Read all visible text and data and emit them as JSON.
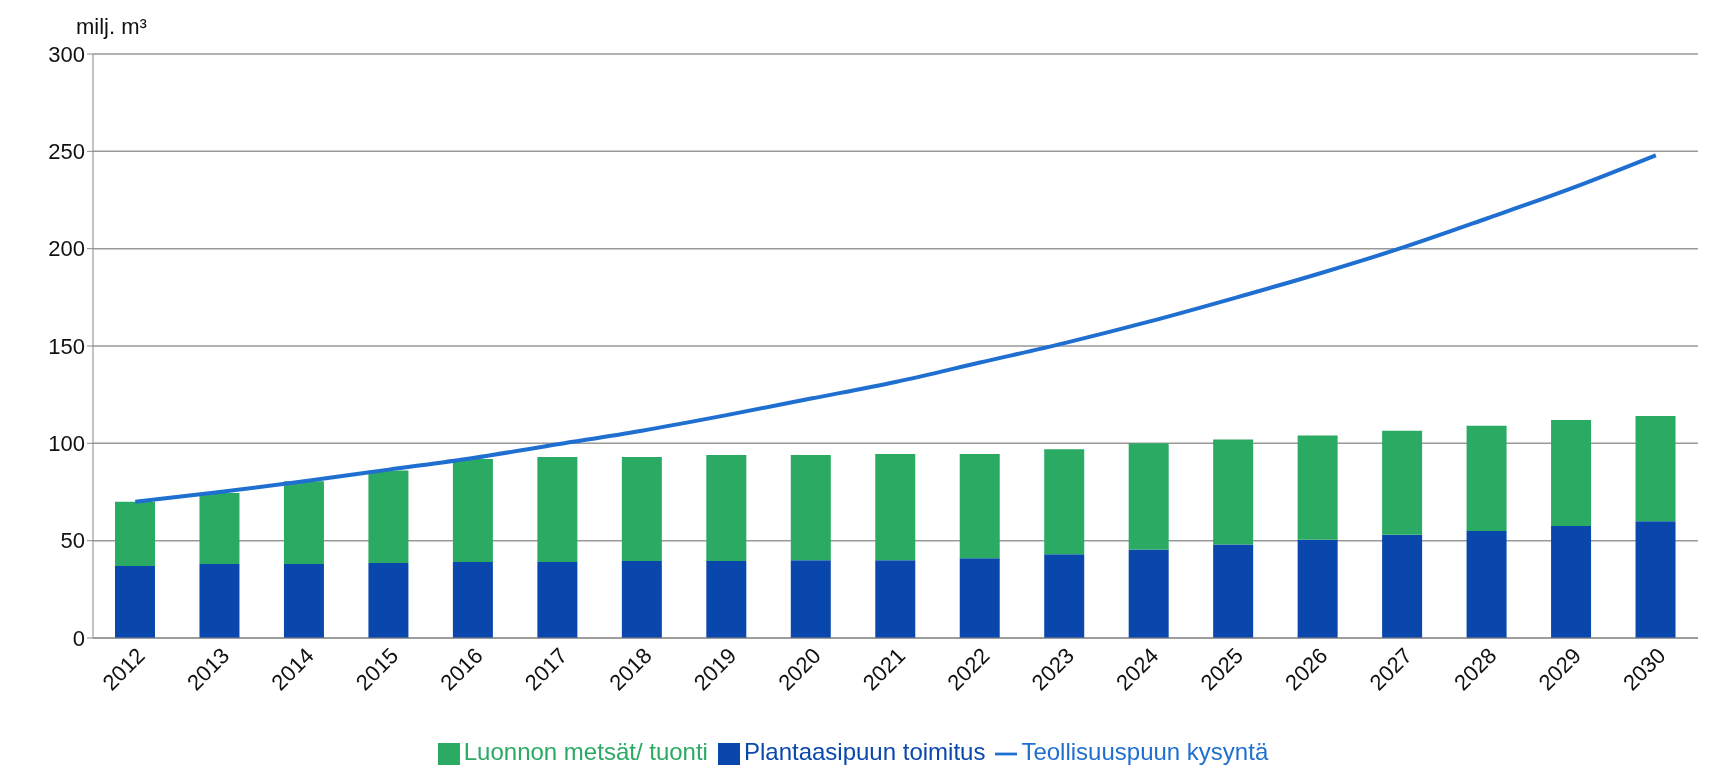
{
  "chart_data": {
    "type": "bar",
    "stacked": true,
    "ylabel": "milj. m³",
    "categories": [
      "2012",
      "2013",
      "2014",
      "2015",
      "2016",
      "2017",
      "2018",
      "2019",
      "2020",
      "2021",
      "2022",
      "2023",
      "2024",
      "2025",
      "2026",
      "2027",
      "2028",
      "2029",
      "2030"
    ],
    "series": [
      {
        "name": "Plantaasipuun toimitus",
        "color": "#0a47ad",
        "values": [
          37,
          38,
          38,
          38.5,
          39,
          39,
          39.5,
          39.5,
          40,
          40,
          41,
          43,
          45.5,
          48,
          50.5,
          53,
          55,
          57.5,
          60
        ]
      },
      {
        "name": "Luonnon metsät/ tuonti",
        "color": "#2aaa63",
        "values": [
          33,
          36.5,
          42.5,
          47.5,
          53,
          54,
          53.5,
          54.5,
          54,
          54.5,
          53.5,
          54,
          54.5,
          54,
          53.5,
          53.5,
          54,
          54.5,
          54
        ]
      },
      {
        "name": "Teollisuuspuun kysyntä",
        "type": "line",
        "color": "#1f6fd0",
        "values": [
          70,
          75,
          80.5,
          86.5,
          92.5,
          99.5,
          106.5,
          114.5,
          123,
          131.5,
          141.5,
          151.5,
          162.5,
          174.5,
          187,
          200.5,
          215.5,
          231,
          248
        ]
      }
    ],
    "ylim": [
      0,
      300
    ],
    "yticks": [
      0,
      50,
      100,
      150,
      200,
      250,
      300
    ],
    "grid": "y",
    "legend": "bottom",
    "marker": "none",
    "line_style": "solid"
  }
}
